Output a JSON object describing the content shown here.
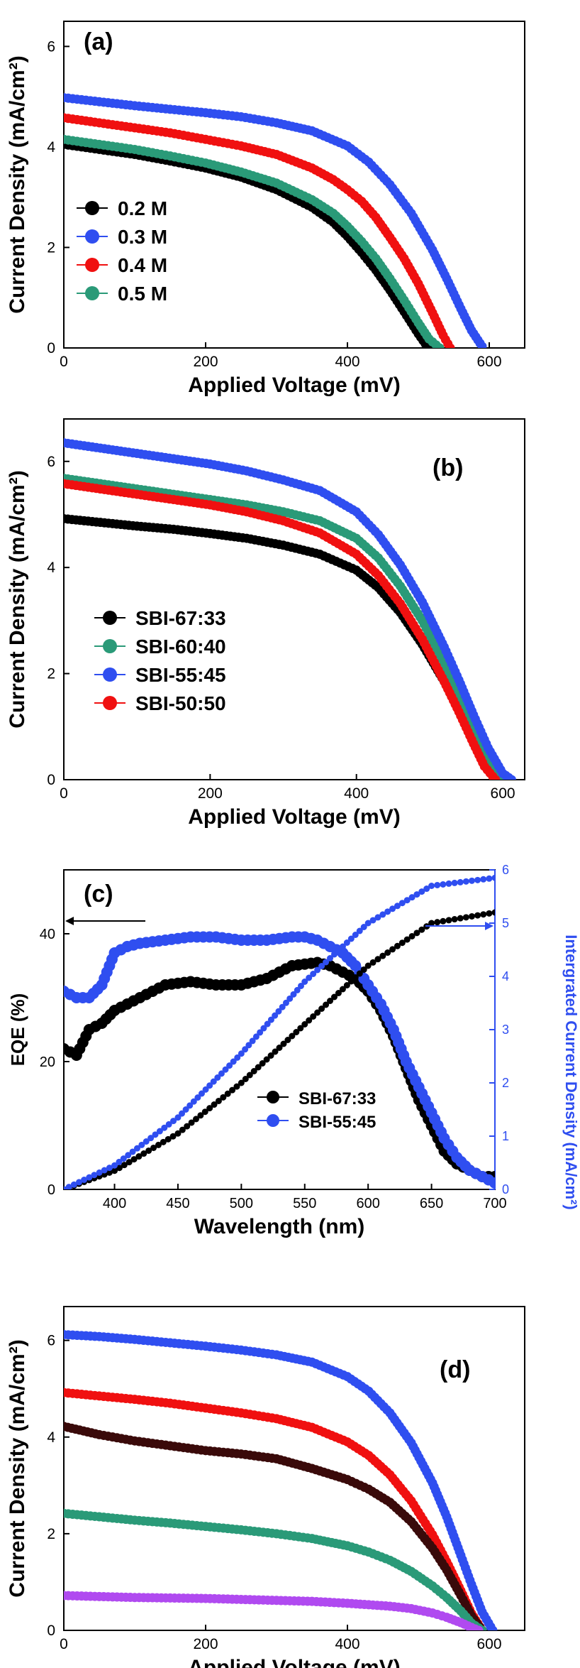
{
  "chart_data": [
    {
      "type": "line",
      "panel_label": "(a)",
      "xlabel": "Applied Voltage (mV)",
      "ylabel": "Current Density (mA/cm²)",
      "xlim": [
        0,
        650
      ],
      "ylim": [
        0,
        6.5
      ],
      "xticks": [
        0,
        200,
        400,
        600
      ],
      "yticks": [
        0,
        2,
        4,
        6
      ],
      "legend_position": "center-left",
      "series": [
        {
          "name": "0.2 M",
          "color": "#000000",
          "x": [
            0,
            50,
            100,
            150,
            200,
            250,
            300,
            350,
            380,
            400,
            420,
            440,
            460,
            480,
            500,
            510,
            520
          ],
          "y": [
            4.05,
            3.95,
            3.85,
            3.72,
            3.58,
            3.4,
            3.15,
            2.8,
            2.5,
            2.22,
            1.9,
            1.55,
            1.15,
            0.72,
            0.28,
            0.08,
            0
          ]
        },
        {
          "name": "0.3 M",
          "color": "#2f4ef0",
          "x": [
            0,
            50,
            100,
            150,
            200,
            250,
            300,
            350,
            400,
            430,
            460,
            490,
            520,
            540,
            560,
            575,
            590
          ],
          "y": [
            4.98,
            4.9,
            4.82,
            4.75,
            4.68,
            4.6,
            4.48,
            4.32,
            4.02,
            3.7,
            3.25,
            2.68,
            1.95,
            1.38,
            0.78,
            0.35,
            0.03
          ]
        },
        {
          "name": "0.4 M",
          "color": "#f01010",
          "x": [
            0,
            50,
            100,
            150,
            200,
            250,
            300,
            350,
            380,
            400,
            420,
            440,
            460,
            480,
            500,
            520,
            535,
            545
          ],
          "y": [
            4.58,
            4.48,
            4.38,
            4.28,
            4.15,
            4.02,
            3.85,
            3.58,
            3.35,
            3.15,
            2.92,
            2.6,
            2.2,
            1.78,
            1.28,
            0.7,
            0.25,
            0
          ]
        },
        {
          "name": "0.5 M",
          "color": "#2a9a78",
          "x": [
            0,
            50,
            100,
            150,
            200,
            250,
            300,
            350,
            380,
            400,
            420,
            440,
            460,
            480,
            500,
            515,
            530
          ],
          "y": [
            4.15,
            4.05,
            3.95,
            3.82,
            3.68,
            3.5,
            3.28,
            2.95,
            2.68,
            2.42,
            2.12,
            1.78,
            1.38,
            0.95,
            0.5,
            0.18,
            0
          ]
        }
      ]
    },
    {
      "type": "line",
      "panel_label": "(b)",
      "xlabel": "Applied Voltage (mV)",
      "ylabel": "Current Density (mA/cm²)",
      "xlim": [
        0,
        630
      ],
      "ylim": [
        0,
        6.8
      ],
      "xticks": [
        0,
        200,
        400,
        600
      ],
      "yticks": [
        0,
        2,
        4,
        6
      ],
      "legend_position": "center-left",
      "series": [
        {
          "name": "SBI-67:33",
          "color": "#000000",
          "x": [
            0,
            50,
            100,
            150,
            200,
            250,
            300,
            350,
            400,
            430,
            460,
            490,
            520,
            540,
            560,
            575,
            590
          ],
          "y": [
            4.92,
            4.85,
            4.78,
            4.72,
            4.64,
            4.55,
            4.42,
            4.25,
            3.95,
            3.62,
            3.15,
            2.55,
            1.85,
            1.3,
            0.72,
            0.3,
            0
          ]
        },
        {
          "name": "SBI-60:40",
          "color": "#2a9a78",
          "x": [
            0,
            50,
            100,
            150,
            200,
            250,
            300,
            350,
            400,
            430,
            460,
            490,
            520,
            540,
            560,
            580,
            600
          ],
          "y": [
            5.68,
            5.58,
            5.48,
            5.38,
            5.28,
            5.18,
            5.05,
            4.88,
            4.55,
            4.18,
            3.65,
            3.0,
            2.2,
            1.6,
            0.98,
            0.38,
            0
          ]
        },
        {
          "name": "SBI-55:45",
          "color": "#2f4ef0",
          "x": [
            0,
            50,
            100,
            150,
            200,
            250,
            300,
            350,
            400,
            430,
            460,
            490,
            520,
            540,
            560,
            580,
            600,
            612
          ],
          "y": [
            6.35,
            6.25,
            6.15,
            6.05,
            5.95,
            5.82,
            5.65,
            5.45,
            5.05,
            4.62,
            4.05,
            3.35,
            2.5,
            1.88,
            1.22,
            0.6,
            0.12,
            0
          ]
        },
        {
          "name": "SBI-50:50",
          "color": "#f01010",
          "x": [
            0,
            50,
            100,
            150,
            200,
            250,
            300,
            350,
            400,
            430,
            460,
            490,
            520,
            540,
            560,
            575,
            590
          ],
          "y": [
            5.58,
            5.48,
            5.38,
            5.28,
            5.18,
            5.05,
            4.88,
            4.65,
            4.25,
            3.85,
            3.32,
            2.65,
            1.85,
            1.28,
            0.68,
            0.25,
            0
          ]
        }
      ]
    },
    {
      "type": "line",
      "panel_label": "(c)",
      "xlabel": "Wavelength (nm)",
      "ylabel": "EQE (%)",
      "ylabel_right": "Intergrated Current Density (mA/cm²)",
      "xlim": [
        360,
        700
      ],
      "ylim": [
        0,
        50
      ],
      "ylim_right": [
        0,
        6
      ],
      "xticks": [
        400,
        450,
        500,
        550,
        600,
        650,
        700
      ],
      "yticks": [
        0,
        20,
        40
      ],
      "yticks_right": [
        0,
        1,
        2,
        3,
        4,
        5,
        6
      ],
      "right_axis_color": "#2f4ef0",
      "legend_position": "bottom-center",
      "series": [
        {
          "name": "SBI-67:33",
          "color": "#000000",
          "axis": "left",
          "x": [
            360,
            370,
            380,
            390,
            400,
            410,
            420,
            440,
            460,
            480,
            500,
            520,
            540,
            560,
            570,
            580,
            590,
            600,
            610,
            620,
            630,
            640,
            650,
            660,
            670,
            680,
            690,
            700
          ],
          "y": [
            22,
            21,
            25,
            26,
            28,
            29,
            30,
            32,
            32.5,
            32,
            32,
            33,
            35,
            35.5,
            35,
            34,
            33,
            31,
            28,
            24,
            19,
            14,
            10,
            6,
            4,
            3,
            2,
            2
          ]
        },
        {
          "name": "SBI-55:45",
          "color": "#2f4ef0",
          "axis": "left",
          "x": [
            360,
            370,
            380,
            390,
            400,
            410,
            420,
            440,
            460,
            480,
            500,
            520,
            540,
            550,
            560,
            570,
            580,
            590,
            600,
            610,
            620,
            630,
            640,
            650,
            660,
            670,
            680,
            690,
            700
          ],
          "y": [
            31,
            30,
            30,
            32,
            37,
            38,
            38.5,
            39,
            39.5,
            39.5,
            39,
            39,
            39.5,
            39.5,
            39,
            38,
            37,
            35,
            32,
            29,
            25,
            20,
            16,
            12,
            8,
            5,
            3,
            2,
            1
          ]
        },
        {
          "name": "",
          "color": "#000000",
          "axis": "right",
          "x": [
            360,
            400,
            450,
            500,
            550,
            600,
            650,
            700
          ],
          "y": [
            0,
            0.35,
            1.05,
            2.0,
            3.1,
            4.2,
            5.0,
            5.2
          ]
        },
        {
          "name": "",
          "color": "#2f4ef0",
          "axis": "right",
          "x": [
            360,
            400,
            450,
            500,
            550,
            600,
            650,
            700
          ],
          "y": [
            0,
            0.45,
            1.35,
            2.55,
            3.9,
            5.0,
            5.7,
            5.85
          ]
        }
      ]
    },
    {
      "type": "line",
      "panel_label": "(d)",
      "xlabel": "Applied Voltage (mV)",
      "ylabel": "Current Density (mA/cm²)",
      "xlim": [
        0,
        650
      ],
      "ylim": [
        0,
        6.7
      ],
      "xticks": [
        0,
        200,
        400,
        600
      ],
      "yticks": [
        0,
        2,
        4,
        6
      ],
      "legend_position": "none",
      "series": [
        {
          "name": "",
          "color": "#2f4ef0",
          "x": [
            0,
            50,
            100,
            150,
            200,
            250,
            300,
            350,
            400,
            430,
            460,
            490,
            520,
            540,
            560,
            575,
            590,
            605
          ],
          "y": [
            6.12,
            6.08,
            6.02,
            5.95,
            5.88,
            5.8,
            5.7,
            5.55,
            5.25,
            4.95,
            4.5,
            3.88,
            3.05,
            2.35,
            1.55,
            0.95,
            0.38,
            0
          ]
        },
        {
          "name": "",
          "color": "#f01010",
          "x": [
            0,
            50,
            100,
            150,
            200,
            250,
            300,
            350,
            400,
            430,
            460,
            490,
            520,
            540,
            560,
            575,
            590
          ],
          "y": [
            4.92,
            4.85,
            4.78,
            4.7,
            4.6,
            4.5,
            4.38,
            4.2,
            3.9,
            3.62,
            3.22,
            2.68,
            1.98,
            1.42,
            0.82,
            0.35,
            0
          ]
        },
        {
          "name": "",
          "color": "#3a0a0a",
          "x": [
            0,
            50,
            100,
            150,
            200,
            250,
            300,
            350,
            400,
            430,
            460,
            490,
            520,
            540,
            560,
            575,
            590
          ],
          "y": [
            4.22,
            4.05,
            3.92,
            3.82,
            3.72,
            3.65,
            3.55,
            3.35,
            3.12,
            2.92,
            2.65,
            2.25,
            1.7,
            1.25,
            0.72,
            0.3,
            0
          ]
        },
        {
          "name": "",
          "color": "#2a9a78",
          "x": [
            0,
            50,
            100,
            150,
            200,
            250,
            300,
            350,
            400,
            430,
            460,
            490,
            520,
            540,
            560,
            575,
            590
          ],
          "y": [
            2.42,
            2.35,
            2.28,
            2.22,
            2.15,
            2.08,
            2.0,
            1.9,
            1.75,
            1.62,
            1.45,
            1.22,
            0.92,
            0.68,
            0.4,
            0.15,
            0
          ]
        },
        {
          "name": "",
          "color": "#b04af0",
          "x": [
            0,
            50,
            100,
            150,
            200,
            250,
            300,
            350,
            400,
            430,
            460,
            490,
            520,
            540,
            560,
            575,
            585
          ],
          "y": [
            0.72,
            0.7,
            0.68,
            0.67,
            0.66,
            0.64,
            0.62,
            0.6,
            0.56,
            0.53,
            0.5,
            0.45,
            0.36,
            0.27,
            0.16,
            0.06,
            0
          ]
        }
      ]
    }
  ]
}
